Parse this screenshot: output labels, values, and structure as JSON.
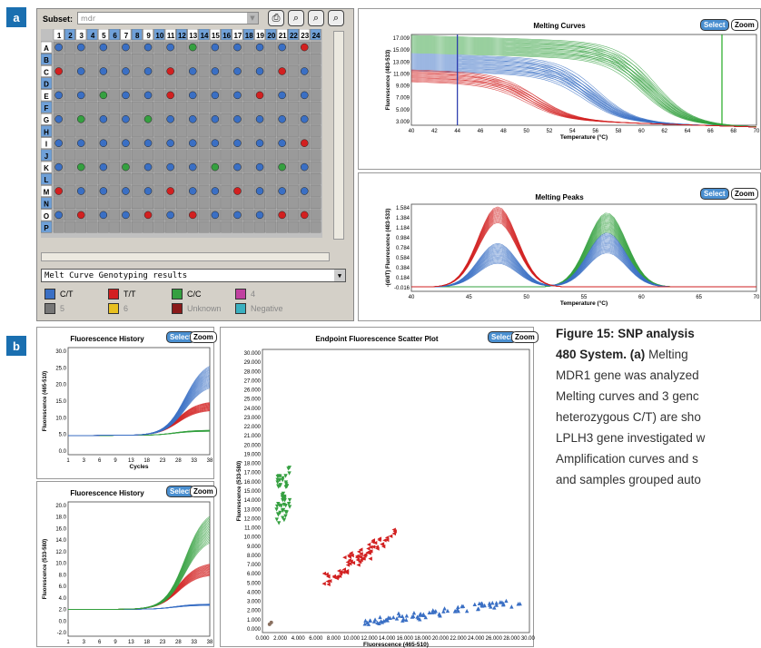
{
  "panels": {
    "a": "a",
    "b": "b"
  },
  "subset": {
    "label": "Subset:",
    "value": "mdr"
  },
  "plate": {
    "columns": [
      "1",
      "2",
      "3",
      "4",
      "5",
      "6",
      "7",
      "8",
      "9",
      "10",
      "11",
      "12",
      "13",
      "14",
      "15",
      "16",
      "17",
      "18",
      "19",
      "20",
      "21",
      "22",
      "23",
      "24"
    ],
    "rows": [
      "A",
      "B",
      "C",
      "D",
      "E",
      "F",
      "G",
      "H",
      "I",
      "J",
      "K",
      "L",
      "M",
      "N",
      "O",
      "P"
    ],
    "wells": [
      {
        "row": "A",
        "genotypes": [
          "blue",
          "blue",
          "blue",
          "blue",
          "blue",
          "blue",
          "green",
          "blue",
          "blue",
          "blue",
          "blue",
          "red",
          "blue",
          "green"
        ]
      },
      {
        "row": "C",
        "genotypes": [
          "red",
          "blue",
          "blue",
          "blue",
          "blue",
          "red",
          "blue",
          "blue",
          "blue",
          "blue",
          "red",
          "blue",
          "blue",
          "red"
        ]
      },
      {
        "row": "E",
        "genotypes": [
          "blue",
          "blue",
          "green",
          "blue",
          "blue",
          "red",
          "blue",
          "blue",
          "blue",
          "red",
          "blue",
          "blue",
          "red",
          "blue"
        ]
      },
      {
        "row": "G",
        "genotypes": [
          "blue",
          "green",
          "blue",
          "blue",
          "green",
          "blue",
          "blue",
          "blue",
          "blue",
          "blue",
          "blue",
          "blue",
          "green",
          "blue"
        ]
      },
      {
        "row": "I",
        "genotypes": [
          "blue",
          "blue",
          "blue",
          "blue",
          "blue",
          "blue",
          "blue",
          "blue",
          "blue",
          "blue",
          "blue",
          "red",
          "blue",
          "blue"
        ]
      },
      {
        "row": "K",
        "genotypes": [
          "blue",
          "green",
          "blue",
          "green",
          "blue",
          "blue",
          "blue",
          "green",
          "blue",
          "blue",
          "green",
          "blue",
          "green",
          "blue"
        ]
      },
      {
        "row": "M",
        "genotypes": [
          "red",
          "blue",
          "blue",
          "blue",
          "blue",
          "red",
          "blue",
          "blue",
          "red",
          "blue",
          "blue",
          "blue",
          "blue",
          "blue"
        ]
      },
      {
        "row": "O",
        "genotypes": [
          "blue",
          "red",
          "blue",
          "blue",
          "red",
          "blue",
          "red",
          "blue",
          "blue",
          "blue",
          "red",
          "red",
          "blue",
          "blue"
        ]
      }
    ]
  },
  "results_dropdown": "Melt Curve Genotyping results",
  "legend": [
    {
      "label": "C/T",
      "color": "#3a6fc4"
    },
    {
      "label": "T/T",
      "color": "#d22020"
    },
    {
      "label": "C/C",
      "color": "#35a040"
    },
    {
      "label": "4",
      "color": "#c040a0"
    },
    {
      "label": "5",
      "color": "#777777"
    },
    {
      "label": "6",
      "color": "#e8c020"
    },
    {
      "label": "Unknown",
      "color": "#8b1a1a"
    },
    {
      "label": "Negative",
      "color": "#3ab0c0"
    }
  ],
  "buttons": {
    "select": "Select",
    "zoom": "Zoom"
  },
  "melting_curves": {
    "title": "Melting Curves",
    "ylabel": "Fluorescence (483-533)",
    "xlabel": "Temperature (°C)",
    "yticks": [
      "17.009",
      "15.009",
      "13.009",
      "11.009",
      "9.009",
      "7.009",
      "5.009",
      "3.009"
    ],
    "xticks": [
      "40",
      "42",
      "44",
      "46",
      "48",
      "50",
      "52",
      "54",
      "56",
      "58",
      "60",
      "62",
      "64",
      "66",
      "68",
      "70"
    ]
  },
  "melting_peaks": {
    "title": "Melting Peaks",
    "ylabel": "-(d/dT) Fluorescence (483-533)",
    "xlabel": "Temperature (°C)",
    "yticks": [
      "1.584",
      "1.384",
      "1.184",
      "0.984",
      "0.784",
      "0.584",
      "0.384",
      "0.184",
      "-0.016"
    ],
    "xticks": [
      "40",
      "45",
      "50",
      "55",
      "60",
      "65",
      "70"
    ]
  },
  "fh1": {
    "title": "Fluorescence History",
    "ylabel": "Fluorescence (465-510)",
    "xlabel": "Cycles",
    "yticks": [
      "30.0",
      "25.0",
      "20.0",
      "15.0",
      "10.0",
      "5.0",
      "0.0"
    ],
    "xticks": [
      "1",
      "3",
      "6",
      "9",
      "13",
      "18",
      "23",
      "28",
      "33",
      "38"
    ]
  },
  "fh2": {
    "title": "Fluorescence History",
    "ylabel": "Fluorescence (533-580)",
    "yticks": [
      "20.0",
      "18.0",
      "16.0",
      "14.0",
      "12.0",
      "10.0",
      "8.0",
      "6.0",
      "4.0",
      "2.0",
      "0.0",
      "-2.0"
    ],
    "xticks": [
      "1",
      "3",
      "6",
      "9",
      "13",
      "18",
      "23",
      "28",
      "33",
      "38"
    ]
  },
  "scatter": {
    "title": "Endpoint Fluorescence Scatter Plot",
    "ylabel": "Fluorescence (533-580)",
    "xlabel": "Fluorescence (465-510)",
    "yticks": [
      "30.000",
      "29.000",
      "28.000",
      "27.000",
      "26.000",
      "25.000",
      "24.000",
      "23.000",
      "22.000",
      "21.000",
      "20.000",
      "19.000",
      "18.000",
      "17.000",
      "16.000",
      "15.000",
      "14.000",
      "13.000",
      "12.000",
      "11.000",
      "10.000",
      "9.000",
      "8.000",
      "7.000",
      "6.000",
      "5.000",
      "4.000",
      "3.000",
      "2.000",
      "1.000",
      "0.000"
    ],
    "xticks": [
      "0.000",
      "2.000",
      "4.000",
      "6.000",
      "8.000",
      "10.000",
      "12.000",
      "14.000",
      "16.000",
      "18.000",
      "20.000",
      "22.000",
      "24.000",
      "26.000",
      "28.000",
      "30.000"
    ]
  },
  "caption": {
    "line1": "Figure 15: SNP analysis",
    "line2_bold": "480 System. (a)",
    "line2_rest": " Melting",
    "line3": "MDR1 gene was analyzed",
    "line4": "Melting curves and 3 genc",
    "line5": "heterozygous C/T) are sho",
    "line6": "LPLH3 gene investigated w",
    "line7": "Amplification curves and s",
    "line8": "and samples grouped auto"
  }
}
